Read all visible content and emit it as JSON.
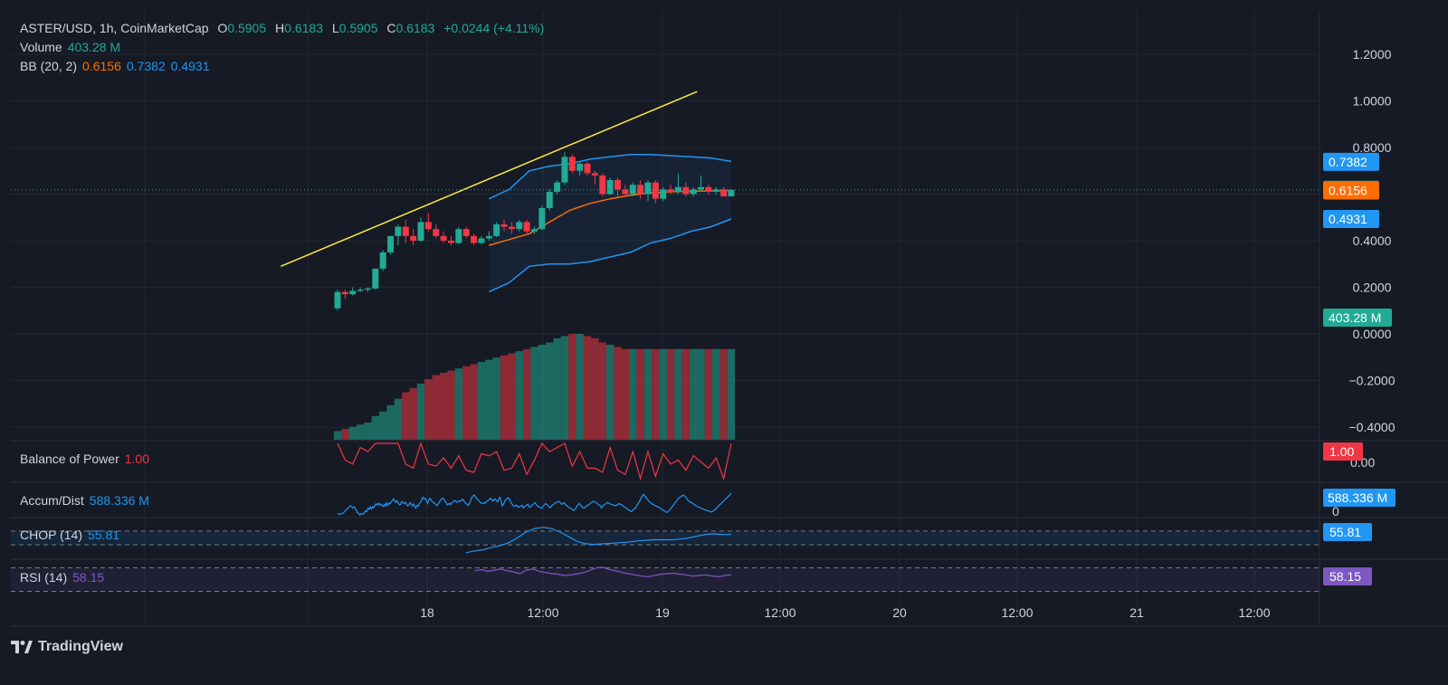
{
  "header": {
    "symbol": "ASTER/USD, 1h, CoinMarketCap",
    "o_label": "O",
    "o_value": "0.5905",
    "h_label": "H",
    "h_value": "0.6183",
    "l_label": "L",
    "l_value": "0.5905",
    "c_label": "C",
    "c_value": "0.6183",
    "change": "+0.0244 (+4.11%)"
  },
  "volume_legend": {
    "label": "Volume",
    "value": "403.28 M"
  },
  "bb_legend": {
    "label": "BB (20, 2)",
    "basis": "0.6156",
    "upper": "0.7382",
    "lower": "0.4931"
  },
  "bop_legend": {
    "label": "Balance of Power",
    "value": "1.00"
  },
  "ad_legend": {
    "label": "Accum/Dist",
    "value": "588.336 M"
  },
  "chop_legend": {
    "label": "CHOP (14)",
    "value": "55.81"
  },
  "rsi_legend": {
    "label": "RSI (14)",
    "value": "58.15"
  },
  "brand": {
    "name": "TradingView"
  },
  "colors": {
    "background": "#161a25",
    "up": "#22ab94",
    "down": "#f23645",
    "bb_band": "#2196f3",
    "bb_basis": "#ff6d00",
    "trendline": "#ffeb3b",
    "chop": "#2196f3",
    "rsi": "#7e57c2",
    "text": "#d1d4dc"
  },
  "chart_data": {
    "type": "candlestick",
    "interval": "1h",
    "x_tick_labels": [
      "18",
      "12:00",
      "19",
      "12:00",
      "20",
      "12:00",
      "21",
      "12:00"
    ],
    "price_axis": {
      "ylim": [
        -0.5,
        1.3
      ],
      "ticks": [
        "1.2000",
        "1.0000",
        "0.8000",
        "0.4000",
        "0.2000",
        "0.0000",
        "−0.2000",
        "−0.4000"
      ]
    },
    "price_tags": [
      {
        "name": "bb-upper",
        "value": 0.7382,
        "label": "0.7382",
        "color": "#2196f3"
      },
      {
        "name": "last-price",
        "value": 0.6183,
        "label": "0.6183",
        "color": "#22ab94"
      },
      {
        "name": "bb-basis",
        "value": 0.6156,
        "label": "0.6156",
        "color": "#ff6d00"
      },
      {
        "name": "bb-lower",
        "value": 0.4931,
        "label": "0.4931",
        "color": "#2196f3"
      },
      {
        "name": "volume-last",
        "value": 0.07,
        "label": "403.28 M",
        "color": "#22ab94"
      }
    ],
    "candles": [
      [
        0.11,
        0.19,
        0.1,
        0.18
      ],
      [
        0.18,
        0.19,
        0.15,
        0.17
      ],
      [
        0.17,
        0.2,
        0.165,
        0.185
      ],
      [
        0.185,
        0.2,
        0.18,
        0.19
      ],
      [
        0.19,
        0.2,
        0.18,
        0.195
      ],
      [
        0.195,
        0.28,
        0.19,
        0.28
      ],
      [
        0.28,
        0.36,
        0.27,
        0.35
      ],
      [
        0.35,
        0.42,
        0.34,
        0.42
      ],
      [
        0.42,
        0.47,
        0.38,
        0.46
      ],
      [
        0.46,
        0.49,
        0.39,
        0.42
      ],
      [
        0.42,
        0.45,
        0.38,
        0.4
      ],
      [
        0.4,
        0.5,
        0.395,
        0.48
      ],
      [
        0.48,
        0.52,
        0.44,
        0.45
      ],
      [
        0.45,
        0.47,
        0.41,
        0.42
      ],
      [
        0.42,
        0.44,
        0.39,
        0.4
      ],
      [
        0.4,
        0.42,
        0.38,
        0.39
      ],
      [
        0.39,
        0.46,
        0.385,
        0.45
      ],
      [
        0.45,
        0.46,
        0.41,
        0.42
      ],
      [
        0.42,
        0.43,
        0.38,
        0.39
      ],
      [
        0.39,
        0.42,
        0.385,
        0.41
      ],
      [
        0.41,
        0.44,
        0.4,
        0.42
      ],
      [
        0.42,
        0.48,
        0.415,
        0.47
      ],
      [
        0.47,
        0.49,
        0.44,
        0.46
      ],
      [
        0.46,
        0.48,
        0.43,
        0.45
      ],
      [
        0.45,
        0.49,
        0.44,
        0.48
      ],
      [
        0.48,
        0.49,
        0.43,
        0.44
      ],
      [
        0.44,
        0.46,
        0.43,
        0.45
      ],
      [
        0.45,
        0.55,
        0.445,
        0.54
      ],
      [
        0.54,
        0.62,
        0.53,
        0.61
      ],
      [
        0.61,
        0.66,
        0.6,
        0.65
      ],
      [
        0.65,
        0.78,
        0.64,
        0.76
      ],
      [
        0.76,
        0.77,
        0.69,
        0.7
      ],
      [
        0.7,
        0.74,
        0.68,
        0.73
      ],
      [
        0.73,
        0.74,
        0.68,
        0.69
      ],
      [
        0.69,
        0.7,
        0.64,
        0.68
      ],
      [
        0.68,
        0.69,
        0.59,
        0.6
      ],
      [
        0.6,
        0.67,
        0.595,
        0.66
      ],
      [
        0.66,
        0.67,
        0.59,
        0.62
      ],
      [
        0.62,
        0.64,
        0.59,
        0.6
      ],
      [
        0.6,
        0.65,
        0.59,
        0.64
      ],
      [
        0.64,
        0.66,
        0.58,
        0.6
      ],
      [
        0.6,
        0.66,
        0.57,
        0.65
      ],
      [
        0.65,
        0.66,
        0.56,
        0.58
      ],
      [
        0.58,
        0.63,
        0.57,
        0.62
      ],
      [
        0.62,
        0.64,
        0.6,
        0.61
      ],
      [
        0.61,
        0.69,
        0.6,
        0.63
      ],
      [
        0.63,
        0.65,
        0.59,
        0.6
      ],
      [
        0.6,
        0.63,
        0.59,
        0.62
      ],
      [
        0.62,
        0.68,
        0.61,
        0.63
      ],
      [
        0.63,
        0.64,
        0.6,
        0.61
      ],
      [
        0.61,
        0.63,
        0.6,
        0.62
      ],
      [
        0.62,
        0.63,
        0.59,
        0.59
      ],
      [
        0.5905,
        0.6183,
        0.5905,
        0.6183
      ]
    ],
    "bollinger": {
      "upper": [
        0.58,
        0.62,
        0.7,
        0.72,
        0.73,
        0.75,
        0.76,
        0.77,
        0.77,
        0.765,
        0.76,
        0.755,
        0.74
      ],
      "basis": [
        0.38,
        0.405,
        0.43,
        0.48,
        0.53,
        0.56,
        0.58,
        0.595,
        0.605,
        0.61,
        0.612,
        0.614,
        0.6156
      ],
      "lower": [
        0.18,
        0.22,
        0.29,
        0.3,
        0.3,
        0.31,
        0.33,
        0.35,
        0.39,
        0.41,
        0.44,
        0.46,
        0.4931
      ]
    },
    "trendline": {
      "start": [
        -7.5,
        0.29
      ],
      "end": [
        47.5,
        1.04
      ]
    },
    "volume": [
      0.04,
      0.05,
      0.06,
      0.07,
      0.08,
      0.11,
      0.13,
      0.16,
      0.19,
      0.22,
      0.24,
      0.26,
      0.28,
      0.3,
      0.31,
      0.32,
      0.33,
      0.34,
      0.35,
      0.36,
      0.37,
      0.38,
      0.39,
      0.4,
      0.41,
      0.42,
      0.43,
      0.44,
      0.45,
      0.47,
      0.48,
      0.49,
      0.49,
      0.48,
      0.47,
      0.45,
      0.44,
      0.43,
      0.42,
      0.42,
      0.42,
      0.42,
      0.42,
      0.42,
      0.42,
      0.42,
      0.42,
      0.42,
      0.42,
      0.42,
      0.42,
      0.42,
      0.42
    ],
    "volume_max": 0.49,
    "bop": {
      "ylim": [
        -0.75,
        1.0
      ],
      "ticks": [
        "0.00"
      ],
      "values": [
        1.0,
        0.2,
        0.0,
        0.8,
        0.6,
        1.0,
        1.0,
        1.0,
        1.0,
        0.0,
        -0.2,
        1.0,
        0.0,
        -0.1,
        0.3,
        -0.2,
        0.4,
        -0.3,
        -0.4,
        0.5,
        0.4,
        0.6,
        -0.3,
        -0.2,
        0.5,
        -0.5,
        0.2,
        1.0,
        0.6,
        0.8,
        1.0,
        -0.1,
        0.6,
        -0.2,
        -0.2,
        -0.4,
        0.8,
        -0.3,
        -0.5,
        0.6,
        -0.7,
        0.6,
        -0.6,
        0.5,
        0.0,
        0.2,
        -0.3,
        0.4,
        0.1,
        -0.2,
        0.3,
        -0.7,
        1.0
      ]
    },
    "ad": {
      "ylim": [
        0,
        800
      ],
      "ticks": [
        "0"
      ],
      "values": [
        40,
        45,
        45,
        50,
        60,
        80,
        110,
        140,
        170,
        200,
        230,
        260,
        240,
        200,
        230,
        190,
        150,
        80,
        60,
        20,
        50,
        60,
        40,
        90,
        130,
        110,
        200,
        170,
        230,
        180,
        240,
        210,
        270,
        310,
        280,
        330,
        280,
        310,
        260,
        240,
        300,
        250,
        340,
        270,
        330,
        310,
        370,
        400,
        440,
        380,
        350,
        390,
        330,
        280,
        300,
        370,
        340,
        320,
        350,
        300,
        260,
        280,
        340,
        300,
        260,
        310,
        240,
        200,
        270,
        250,
        320,
        350,
        410,
        480,
        440,
        450,
        390,
        320,
        420,
        460,
        410,
        370,
        340,
        330,
        300,
        260,
        300,
        350,
        400,
        440,
        460,
        430,
        380,
        340,
        280,
        300,
        330,
        290,
        340,
        360,
        400,
        380,
        350,
        370,
        390,
        370,
        400,
        430,
        390,
        350,
        310,
        300,
        270,
        330,
        400,
        480,
        520,
        540,
        500,
        460,
        420,
        390,
        350,
        330,
        320,
        340,
        320,
        350,
        380,
        400,
        420,
        460,
        420,
        380,
        420,
        440,
        390,
        360,
        440,
        480,
        390,
        260,
        300,
        370,
        420,
        440,
        470,
        440,
        370,
        320,
        280,
        250,
        260,
        280,
        240,
        220,
        250,
        260,
        270,
        200,
        240,
        260,
        280,
        300,
        230,
        220,
        260,
        290,
        310,
        340,
        300,
        260,
        240,
        220,
        200,
        200,
        260,
        280,
        320,
        300,
        260,
        240,
        210,
        240,
        280,
        300,
        320,
        340,
        360,
        380,
        360,
        330,
        300,
        320,
        340,
        300,
        260,
        240,
        220,
        200,
        190,
        160,
        140,
        160,
        200,
        260,
        290,
        320,
        280,
        240,
        210,
        200,
        220,
        250,
        270,
        290,
        310,
        340,
        360,
        380,
        360,
        350,
        320,
        300,
        280,
        260,
        200,
        260,
        280,
        300,
        320,
        350,
        330,
        310,
        300,
        290,
        280,
        270,
        260,
        280,
        300,
        320,
        300,
        290,
        260,
        240,
        220,
        200,
        180,
        160,
        140,
        110,
        120,
        160,
        180,
        200,
        260,
        300,
        350,
        400,
        480,
        520,
        560,
        520,
        480,
        440,
        400,
        360,
        340,
        310,
        300,
        280,
        260,
        240,
        250,
        220,
        200,
        180,
        160,
        140,
        120,
        100,
        90,
        110,
        140,
        180,
        220,
        260,
        300,
        340,
        380,
        420,
        460,
        480,
        500,
        520,
        540,
        520,
        480,
        440,
        400,
        380,
        360,
        340,
        320,
        300,
        280,
        260,
        240,
        220,
        210,
        200,
        190,
        180,
        160,
        150,
        140,
        130,
        120,
        110,
        100,
        110,
        130,
        160,
        190,
        220,
        250,
        280,
        310,
        340,
        370,
        400,
        430,
        460,
        490,
        520,
        550,
        588
      ]
    },
    "chop": {
      "ylim": [
        20,
        80
      ],
      "band": [
        38.2,
        61.8
      ],
      "values": [
        25,
        28,
        30,
        34,
        37,
        42,
        50,
        60,
        66,
        68,
        66,
        60,
        52,
        44,
        40,
        39,
        40,
        41,
        42,
        43,
        45,
        46,
        47,
        47,
        47,
        48,
        50,
        53,
        56,
        57,
        56,
        55.81
      ]
    },
    "rsi": {
      "ylim": [
        20,
        80
      ],
      "band": [
        30,
        70
      ],
      "values": [
        65,
        67,
        64,
        66,
        68,
        65,
        63,
        60,
        66,
        68,
        64,
        62,
        60,
        59,
        57,
        58,
        60,
        62,
        66,
        70,
        71,
        67,
        65,
        62,
        60,
        58,
        56,
        55,
        57,
        59,
        60,
        61,
        59,
        58,
        56,
        57,
        58,
        56,
        55,
        57,
        58.15
      ]
    }
  }
}
